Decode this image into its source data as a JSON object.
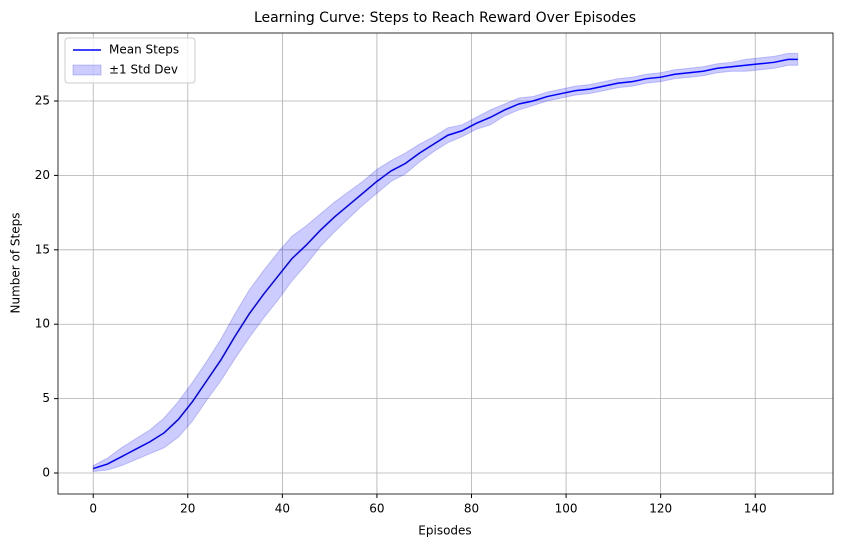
{
  "chart_data": {
    "type": "line",
    "title": "Learning Curve: Steps to Reach Reward Over Episodes",
    "xlabel": "Episodes",
    "ylabel": "Number of Steps",
    "x": [
      0,
      3,
      6,
      9,
      12,
      15,
      18,
      21,
      24,
      27,
      30,
      33,
      36,
      39,
      42,
      45,
      48,
      51,
      54,
      57,
      60,
      63,
      66,
      69,
      72,
      75,
      78,
      81,
      84,
      87,
      90,
      93,
      96,
      99,
      102,
      105,
      108,
      111,
      114,
      117,
      120,
      123,
      126,
      129,
      132,
      135,
      138,
      141,
      144,
      147,
      149
    ],
    "series": [
      {
        "name": "Mean Steps",
        "color": "#0000ff",
        "values": [
          0.3,
          0.6,
          1.1,
          1.6,
          2.1,
          2.7,
          3.6,
          4.8,
          6.2,
          7.6,
          9.2,
          10.7,
          12.0,
          13.2,
          14.4,
          15.3,
          16.3,
          17.2,
          18.0,
          18.8,
          19.6,
          20.3,
          20.8,
          21.5,
          22.1,
          22.7,
          23.0,
          23.5,
          23.9,
          24.4,
          24.8,
          25.0,
          25.3,
          25.5,
          25.7,
          25.8,
          26.0,
          26.2,
          26.3,
          26.5,
          26.6,
          26.8,
          26.9,
          27.0,
          27.2,
          27.3,
          27.4,
          27.5,
          27.6,
          27.8,
          27.8
        ]
      }
    ],
    "band": {
      "name": "±1 Std Dev",
      "color": "#0000ff",
      "lower": [
        0.1,
        0.2,
        0.5,
        0.9,
        1.3,
        1.7,
        2.4,
        3.5,
        4.9,
        6.2,
        7.7,
        9.1,
        10.4,
        11.6,
        12.9,
        14.0,
        15.2,
        16.2,
        17.1,
        18.0,
        18.8,
        19.6,
        20.1,
        20.9,
        21.6,
        22.2,
        22.6,
        23.1,
        23.4,
        24.0,
        24.4,
        24.7,
        25.0,
        25.2,
        25.4,
        25.5,
        25.7,
        25.9,
        26.0,
        26.2,
        26.3,
        26.5,
        26.6,
        26.7,
        26.9,
        27.0,
        27.0,
        27.1,
        27.2,
        27.4,
        27.4
      ],
      "upper": [
        0.5,
        1.0,
        1.7,
        2.3,
        2.9,
        3.7,
        4.8,
        6.1,
        7.5,
        9.0,
        10.7,
        12.3,
        13.6,
        14.8,
        15.9,
        16.6,
        17.4,
        18.2,
        18.9,
        19.6,
        20.4,
        21.0,
        21.5,
        22.1,
        22.6,
        23.2,
        23.4,
        23.9,
        24.4,
        24.8,
        25.2,
        25.3,
        25.6,
        25.8,
        26.0,
        26.1,
        26.3,
        26.5,
        26.6,
        26.8,
        26.9,
        27.1,
        27.2,
        27.3,
        27.5,
        27.6,
        27.8,
        27.9,
        28.0,
        28.2,
        28.2
      ]
    },
    "xlim": [
      -7.45,
      156.45
    ],
    "ylim": [
      -1.41,
      29.57
    ],
    "xticks": [
      0,
      20,
      40,
      60,
      80,
      100,
      120,
      140
    ],
    "yticks": [
      0,
      5,
      10,
      15,
      20,
      25
    ],
    "grid": true,
    "legend": "upper left"
  }
}
